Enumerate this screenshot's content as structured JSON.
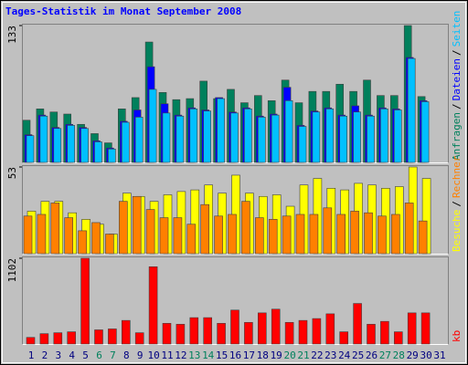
{
  "legend_separator": "/",
  "chart_data": [
    {
      "type": "bar",
      "title": "Tages-Statistik im Monat September 2008",
      "ylim": [
        0,
        133
      ],
      "yticks": [
        133
      ],
      "series": [
        {
          "name": "Anfragen",
          "color": "#00805c",
          "values": [
            41,
            52,
            49,
            47,
            37,
            28,
            19,
            52,
            63,
            117,
            68,
            61,
            62,
            79,
            62,
            71,
            58,
            65,
            60,
            80,
            58,
            69,
            69,
            76,
            69,
            80,
            65,
            65,
            133,
            64,
            0
          ]
        },
        {
          "name": "Dateien",
          "color": "#0000ff",
          "values": [
            27,
            46,
            34,
            37,
            34,
            21,
            14,
            40,
            51,
            93,
            57,
            46,
            53,
            51,
            63,
            49,
            53,
            45,
            47,
            73,
            36,
            50,
            53,
            46,
            55,
            46,
            53,
            52,
            102,
            60,
            0
          ]
        },
        {
          "name": "Seiten",
          "color": "#00c0ff",
          "values": [
            26,
            45,
            33,
            36,
            33,
            20,
            13,
            39,
            44,
            71,
            48,
            45,
            52,
            50,
            62,
            48,
            52,
            44,
            46,
            60,
            35,
            49,
            52,
            45,
            49,
            45,
            52,
            51,
            101,
            59,
            0
          ]
        }
      ]
    },
    {
      "type": "bar",
      "ylim": [
        0,
        53
      ],
      "yticks": [
        53
      ],
      "series": [
        {
          "name": "Besuche",
          "color": "#ffff00",
          "values": [
            26,
            32,
            32,
            25,
            21,
            18,
            12,
            37,
            35,
            32,
            36,
            38,
            39,
            42,
            37,
            48,
            37,
            35,
            36,
            29,
            42,
            46,
            40,
            39,
            43,
            42,
            40,
            41,
            53,
            46,
            0
          ]
        },
        {
          "name": "Rechner",
          "color": "#ff8000",
          "values": [
            23,
            24,
            31,
            22,
            14,
            19,
            12,
            32,
            35,
            27,
            22,
            22,
            18,
            30,
            23,
            24,
            32,
            22,
            21,
            23,
            24,
            24,
            28,
            24,
            26,
            25,
            23,
            24,
            31,
            20,
            0
          ]
        }
      ]
    },
    {
      "type": "bar",
      "ylim": [
        0,
        1102
      ],
      "yticks": [
        1102
      ],
      "categories": [
        "1",
        "2",
        "3",
        "4",
        "5",
        "6",
        "7",
        "8",
        "9",
        "10",
        "11",
        "12",
        "13",
        "14",
        "15",
        "16",
        "17",
        "18",
        "19",
        "20",
        "21",
        "22",
        "23",
        "24",
        "25",
        "26",
        "27",
        "28",
        "29",
        "30",
        "31"
      ],
      "category_colors": [
        "#000080",
        "#000080",
        "#000080",
        "#000080",
        "#000080",
        "#00805c",
        "#00805c",
        "#000080",
        "#000080",
        "#000080",
        "#000080",
        "#000080",
        "#00805c",
        "#00805c",
        "#000080",
        "#000080",
        "#000080",
        "#000080",
        "#000080",
        "#00805c",
        "#00805c",
        "#000080",
        "#000080",
        "#000080",
        "#000080",
        "#000080",
        "#00805c",
        "#00805c",
        "#000080",
        "#000080",
        "#000080"
      ],
      "series": [
        {
          "name": "kb",
          "color": "#ff0000",
          "values": [
            85,
            133,
            145,
            157,
            1102,
            182,
            194,
            303,
            145,
            993,
            266,
            254,
            339,
            339,
            266,
            436,
            278,
            400,
            448,
            278,
            303,
            327,
            388,
            157,
            521,
            254,
            291,
            157,
            400,
            400,
            0
          ]
        }
      ]
    }
  ]
}
